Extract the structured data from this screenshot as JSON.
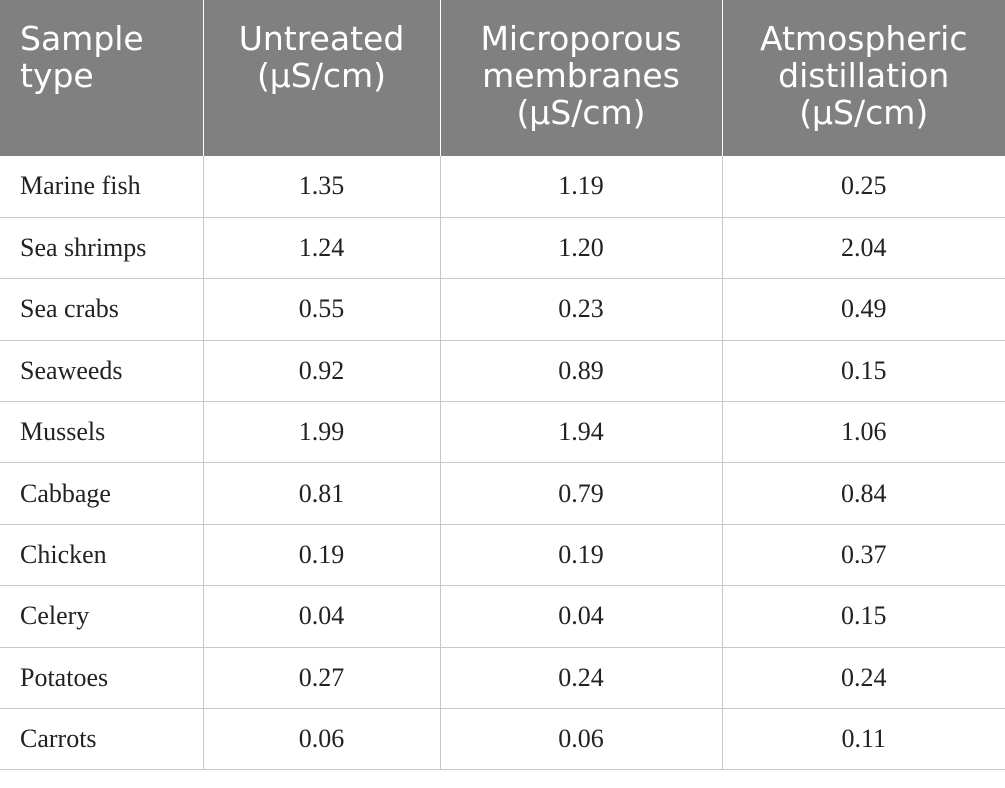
{
  "table": {
    "headers": [
      [
        "Sample",
        "type"
      ],
      [
        "Untreated",
        "(μS/cm)"
      ],
      [
        "Microporous",
        "membranes",
        "(μS/cm)"
      ],
      [
        "Atmospheric",
        "distillation",
        "(μS/cm)"
      ]
    ],
    "rows": [
      [
        "Marine fish",
        "1.35",
        "1.19",
        "0.25"
      ],
      [
        "Sea shrimps",
        "1.24",
        "1.20",
        "2.04"
      ],
      [
        "Sea crabs",
        "0.55",
        "0.23",
        "0.49"
      ],
      [
        "Seaweeds",
        "0.92",
        "0.89",
        "0.15"
      ],
      [
        "Mussels",
        "1.99",
        "1.94",
        "1.06"
      ],
      [
        "Cabbage",
        "0.81",
        "0.79",
        "0.84"
      ],
      [
        "Chicken",
        "0.19",
        "0.19",
        "0.37"
      ],
      [
        "Celery",
        "0.04",
        "0.04",
        "0.15"
      ],
      [
        "Potatoes",
        "0.27",
        "0.24",
        "0.24"
      ],
      [
        "Carrots",
        "0.06",
        "0.06",
        "0.11"
      ]
    ]
  },
  "colors": {
    "header_background": "#808080",
    "header_text": "#ffffff",
    "cell_border": "#c8c8c8",
    "cell_text": "#222222"
  }
}
